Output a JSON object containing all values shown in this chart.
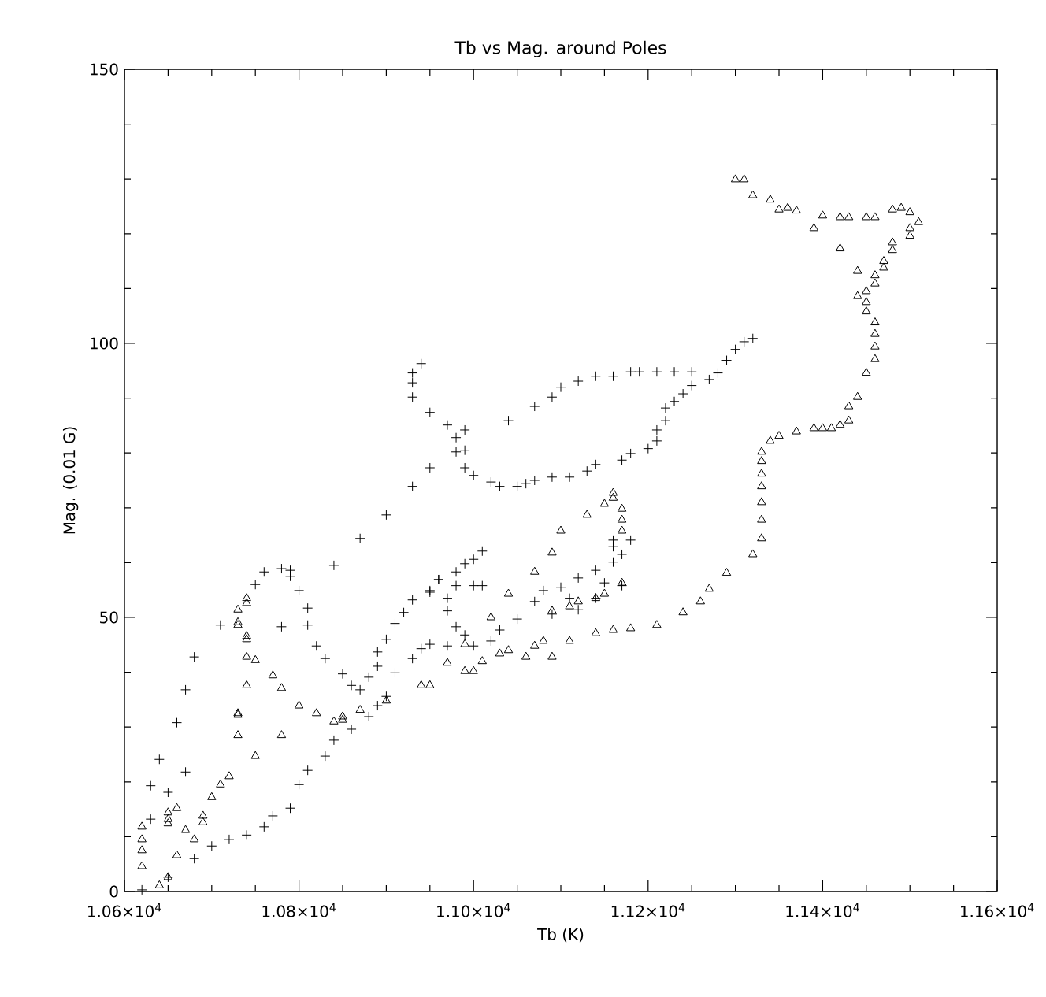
{
  "chart_data": {
    "type": "scatter",
    "title": "Tb vs Mag. around Poles",
    "xlabel": "Tb (K)",
    "ylabel": "Mag. (0.01 G)",
    "xlim": [
      10600,
      11600
    ],
    "ylim": [
      0,
      150
    ],
    "xticks": [
      {
        "value": 10600,
        "label": "1.06×10$^{4}$"
      },
      {
        "value": 10800,
        "label": "1.08×10$^{4}$"
      },
      {
        "value": 11000,
        "label": "1.10×10$^{4}$"
      },
      {
        "value": 11200,
        "label": "1.12×10$^{4}$"
      },
      {
        "value": 11400,
        "label": "1.14×10$^{4}$"
      },
      {
        "value": 11600,
        "label": "1.16×10$^{4}$"
      }
    ],
    "yticks": [
      0,
      50,
      100,
      150
    ],
    "series": [
      {
        "color": "#000000",
        "marker": "cross",
        "x": [
          10620,
          10650,
          10680,
          10700,
          10720,
          10740,
          10760,
          10770,
          10790,
          10800,
          10810,
          10830,
          10840,
          10860,
          10880,
          10890,
          10900,
          10910,
          10930,
          10940,
          10950,
          10970,
          11000,
          11020,
          11030,
          11050,
          11070,
          11080,
          11100,
          11120,
          11140,
          11160,
          11160,
          11180,
          11160,
          11170,
          11170,
          11150,
          11140,
          11120,
          11110,
          11090,
          11010,
          11000,
          10990,
          10980,
          10960,
          10950,
          10980,
          11000,
          11010,
          10970,
          10970,
          10980,
          10990,
          10630,
          10640,
          10660,
          10670,
          10680,
          10710,
          10750,
          10760,
          10780,
          10790,
          10790,
          10800,
          10810,
          10810,
          10820,
          10830,
          10850,
          10860,
          10870,
          10880,
          10890,
          10890,
          10900,
          10910,
          10920,
          10930,
          10950,
          10960,
          10630,
          10650,
          10670,
          10780,
          10840,
          10870,
          10900,
          10930,
          10940,
          10930,
          10930,
          10930,
          10950,
          10970,
          10980,
          10990,
          10980,
          10990,
          10990,
          11000,
          11020,
          11030,
          11050,
          11060,
          11070,
          11090,
          11110,
          11130,
          11140,
          11170,
          11180,
          11200,
          11210,
          11210,
          11220,
          11220,
          11230,
          11240,
          11250,
          11270,
          11280,
          11290,
          11300,
          11310,
          11320,
          11040,
          11070,
          11090,
          11100,
          11120,
          11140,
          11160,
          11180,
          11190,
          11210,
          11230,
          11250,
          10950
        ],
        "values": [
          0.3,
          2.6,
          6.0,
          8.3,
          9.5,
          10.3,
          11.8,
          13.8,
          15.2,
          19.5,
          22.1,
          24.7,
          27.6,
          29.6,
          31.9,
          33.9,
          35.6,
          39.9,
          42.5,
          44.3,
          45.1,
          44.8,
          44.8,
          45.7,
          47.7,
          49.7,
          52.9,
          54.9,
          55.5,
          57.2,
          58.6,
          60.1,
          62.9,
          64.1,
          64.1,
          61.5,
          55.8,
          56.3,
          53.5,
          51.4,
          53.5,
          50.6,
          62.1,
          60.6,
          59.8,
          58.3,
          56.9,
          54.9,
          55.8,
          55.8,
          55.8,
          53.5,
          51.2,
          48.3,
          46.8,
          19.3,
          24.1,
          30.8,
          36.8,
          42.8,
          48.6,
          56.0,
          58.3,
          58.9,
          58.6,
          57.5,
          54.9,
          51.7,
          48.6,
          44.8,
          42.5,
          39.7,
          37.6,
          36.8,
          39.1,
          41.1,
          43.7,
          46.0,
          48.9,
          50.9,
          53.2,
          54.6,
          56.9,
          13.2,
          18.1,
          21.8,
          48.3,
          59.5,
          64.4,
          68.7,
          73.9,
          96.3,
          94.6,
          92.8,
          90.2,
          87.4,
          85.1,
          82.8,
          84.2,
          80.2,
          80.5,
          77.3,
          75.9,
          74.7,
          73.9,
          73.9,
          74.4,
          75.0,
          75.6,
          75.6,
          76.7,
          77.9,
          78.7,
          79.9,
          80.8,
          82.2,
          84.2,
          85.9,
          88.2,
          89.4,
          90.8,
          92.3,
          93.4,
          94.6,
          96.9,
          98.9,
          100.3,
          100.9,
          85.9,
          88.5,
          90.2,
          92.0,
          93.1,
          94.0,
          94.0,
          94.8,
          94.8,
          94.8,
          94.8,
          94.8,
          77.3
        ]
      },
      {
        "color": "#000000",
        "marker": "triangle",
        "x": [
          10620,
          10620,
          10620,
          10620,
          10640,
          10650,
          10650,
          10650,
          10650,
          10660,
          10670,
          10680,
          10660,
          10690,
          10690,
          10700,
          10710,
          10720,
          10750,
          10730,
          10730,
          10730,
          10740,
          10770,
          10780,
          10740,
          10740,
          10730,
          10730,
          10730,
          10740,
          10740,
          10740,
          10750,
          10780,
          10800,
          10820,
          10840,
          10850,
          10850,
          10870,
          10900,
          10940,
          10950,
          10970,
          10990,
          11020,
          11040,
          11070,
          11090,
          11100,
          11130,
          11150,
          11160,
          11160,
          11170,
          11170,
          11170,
          10990,
          11000,
          11010,
          11030,
          11040,
          11060,
          11070,
          11080,
          11090,
          11110,
          11090,
          11110,
          11120,
          11140,
          11150,
          11170,
          11140,
          11160,
          11180,
          11210,
          11240,
          11260,
          11270,
          11290,
          11320,
          11330,
          11330,
          11330,
          11330,
          11330,
          11330,
          11330,
          11340,
          11350,
          11370,
          11390,
          11400,
          11410,
          11420,
          11430,
          11430,
          11440,
          11450,
          11460,
          11460,
          11460,
          11460,
          11450,
          11450,
          11440,
          11450,
          11460,
          11460,
          11470,
          11470,
          11480,
          11480,
          11500,
          11500,
          11510,
          11500,
          11490,
          11480,
          11460,
          11450,
          11430,
          11420,
          11400,
          11420,
          11440,
          11390,
          11370,
          11360,
          11350,
          11340,
          11320,
          11310,
          11300
        ],
        "values": [
          11.8,
          9.5,
          7.5,
          4.6,
          1.1,
          2.6,
          13.2,
          14.4,
          12.4,
          15.2,
          11.2,
          9.5,
          6.6,
          13.8,
          12.6,
          17.2,
          19.5,
          21.0,
          24.7,
          28.5,
          32.5,
          32.2,
          37.6,
          39.4,
          37.1,
          46.0,
          46.6,
          49.1,
          48.6,
          51.4,
          53.5,
          52.6,
          42.8,
          42.2,
          28.5,
          33.9,
          32.5,
          31.0,
          31.3,
          31.9,
          33.1,
          34.8,
          37.6,
          37.6,
          41.7,
          45.1,
          50.0,
          54.3,
          58.3,
          61.8,
          65.8,
          68.7,
          70.7,
          71.8,
          72.7,
          69.8,
          67.8,
          65.8,
          40.2,
          40.2,
          42.0,
          43.4,
          44.0,
          42.8,
          44.8,
          45.7,
          42.8,
          45.7,
          51.2,
          52.0,
          52.9,
          53.5,
          54.3,
          56.3,
          47.1,
          47.7,
          48.0,
          48.6,
          50.9,
          52.9,
          55.2,
          58.1,
          61.5,
          64.4,
          67.8,
          71.0,
          73.9,
          76.2,
          78.5,
          80.2,
          82.2,
          83.1,
          83.9,
          84.5,
          84.5,
          84.5,
          85.1,
          85.9,
          88.5,
          90.2,
          94.6,
          97.1,
          99.4,
          101.7,
          103.8,
          105.8,
          107.5,
          108.6,
          109.5,
          110.9,
          112.4,
          113.8,
          115.0,
          117.0,
          118.4,
          119.6,
          121.0,
          122.1,
          123.9,
          124.7,
          124.4,
          123.0,
          123.0,
          123.0,
          123.0,
          123.3,
          117.3,
          113.2,
          121.0,
          124.2,
          124.7,
          124.4,
          126.2,
          127.0,
          129.9,
          129.9
        ]
      }
    ]
  }
}
